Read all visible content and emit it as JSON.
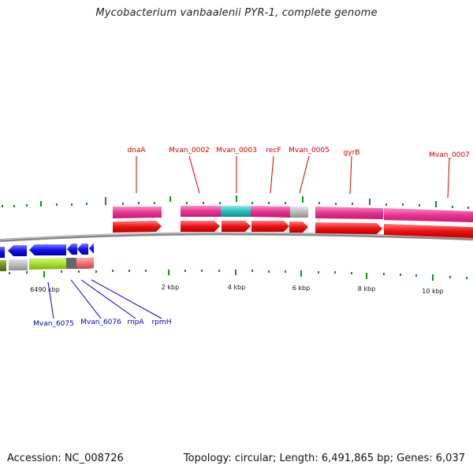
{
  "title": "Mycobacterium vanbaalenii PYR-1, complete genome",
  "footer": {
    "accession": "Accession: NC_008726",
    "topology": "Topology: circular; Length: 6,491,865 bp; Genes: 6,037"
  },
  "colors": {
    "label_forward": "#cc0000",
    "label_reverse": "#0000cc",
    "tick": "#1a8a1a",
    "backbone": "#888888"
  },
  "scale_labels": [
    "6490 kbp",
    "2 kbp",
    "4 kbp",
    "6 kbp",
    "8 kbp",
    "10 kbp"
  ],
  "forward_gene_labels": [
    "dnaA",
    "Mvan_0002",
    "Mvan_0003",
    "recF",
    "Mvan_0005",
    "gyrB",
    "Mvan_0007"
  ],
  "reverse_gene_labels": [
    "Mvan_6075",
    "Mvan_6076",
    "rnpA",
    "rpmH"
  ],
  "feature_colors": {
    "cds": "#ee1111",
    "gene_pink": "#e8338f",
    "gene_cyan": "#22bfbf",
    "gene_gray": "#bbbbbb",
    "reverse_cds": "#1010ee",
    "olive": "#6b8e23",
    "lime": "#a6e22e",
    "dark_gray": "#666666",
    "salmon": "#f07070"
  }
}
